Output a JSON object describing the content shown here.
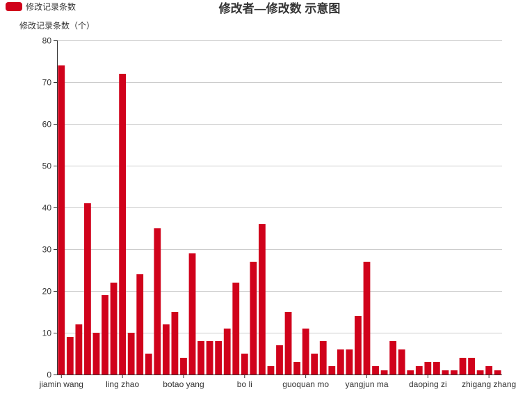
{
  "chart_data": {
    "type": "bar",
    "title": "修改者—修改数 示意图",
    "legend": {
      "label": "修改记录条数",
      "color": "#d0021b",
      "position": "top-left"
    },
    "ylabel": "修改记录条数（个）",
    "xlabel": "",
    "ylim": [
      0,
      80
    ],
    "yticks": [
      0,
      10,
      20,
      30,
      40,
      50,
      60,
      70,
      80
    ],
    "grid": true,
    "bar_color": "#d0021b",
    "x_tick_labels": [
      {
        "index": 0,
        "label": "jiamin wang"
      },
      {
        "index": 7,
        "label": "ling zhao"
      },
      {
        "index": 14,
        "label": "botao yang"
      },
      {
        "index": 21,
        "label": "bo li"
      },
      {
        "index": 28,
        "label": "guoquan mo"
      },
      {
        "index": 35,
        "label": "yangjun ma"
      },
      {
        "index": 42,
        "label": "daoping zi"
      },
      {
        "index": 49,
        "label": "zhigang zhang"
      }
    ],
    "values": [
      74,
      9,
      12,
      41,
      10,
      19,
      22,
      72,
      10,
      24,
      5,
      35,
      12,
      15,
      4,
      29,
      8,
      8,
      8,
      11,
      22,
      5,
      27,
      36,
      2,
      7,
      15,
      3,
      11,
      5,
      8,
      2,
      6,
      6,
      14,
      27,
      2,
      1,
      8,
      6,
      1,
      2,
      3,
      3,
      1,
      1,
      4,
      4,
      1,
      2,
      1
    ]
  }
}
